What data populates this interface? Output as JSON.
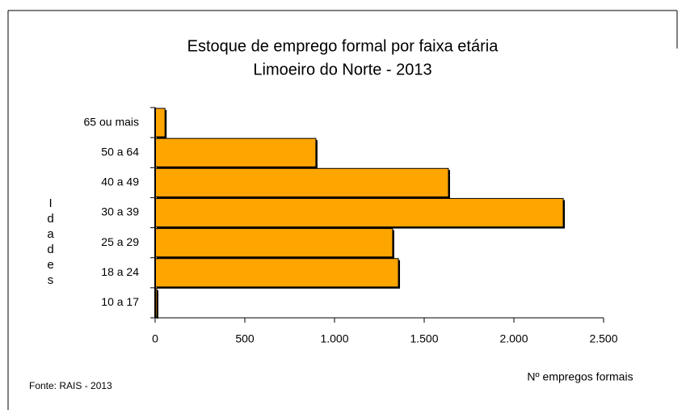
{
  "chart_data": {
    "type": "barh",
    "title": "Estoque de emprego formal por faixa etária",
    "subtitle": "Limoeiro do Norte  - 2013",
    "y_label": "Idades",
    "x_label": "Nº empregos formais",
    "source": "Fonte: RAIS - 2013",
    "categories": [
      "65 ou mais",
      "50 a 64",
      "40 a 49",
      "30 a 39",
      "25 a 29",
      "18 a 24",
      "10 a 17"
    ],
    "values": [
      55,
      896,
      1635,
      2275,
      1324,
      1356,
      9
    ],
    "color": "#ffa500",
    "xlim": [
      0,
      2500
    ],
    "xticks": [
      0,
      500,
      {
        "value": 1000,
        "label": "1.000"
      },
      {
        "value": 1500,
        "label": "1.500"
      },
      {
        "value": 2000,
        "label": "2.000"
      },
      {
        "value": 2500,
        "label": "2.500"
      }
    ],
    "grid": false
  }
}
